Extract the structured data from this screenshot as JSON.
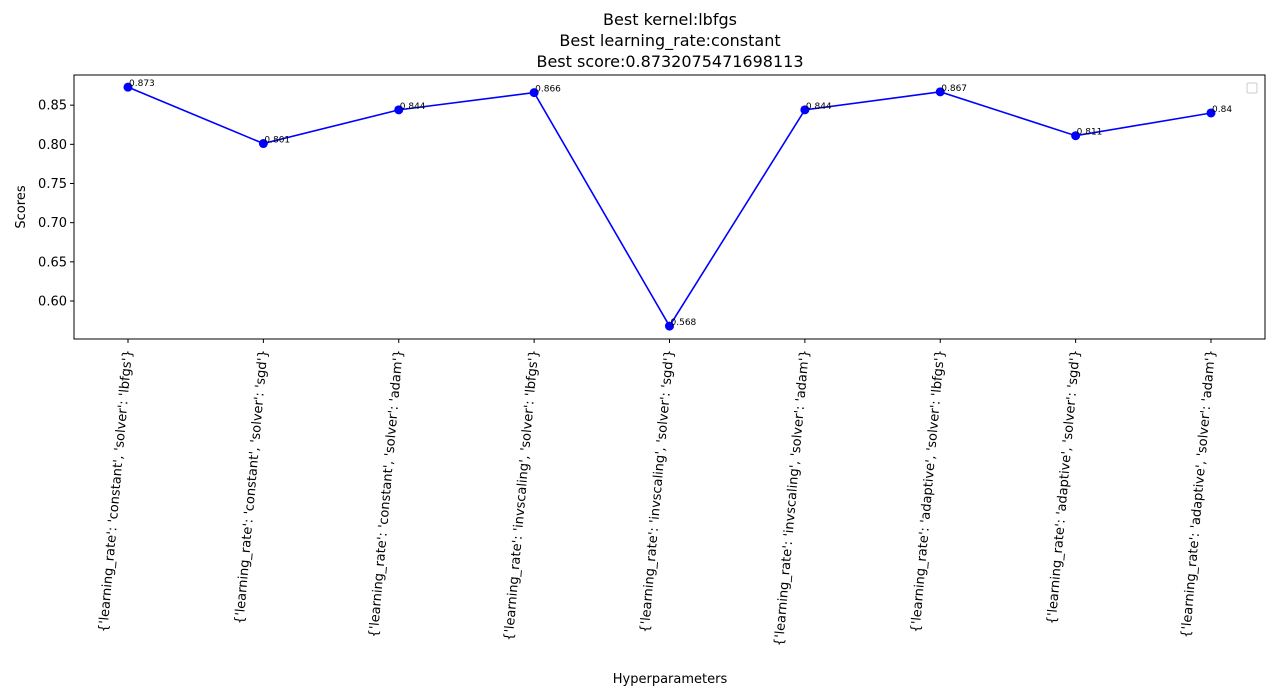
{
  "chart_data": {
    "type": "line",
    "title_lines": [
      "Best kernel:lbfgs",
      "Best learning_rate:constant",
      "Best score:0.8732075471698113"
    ],
    "xlabel": "Hyperparameters",
    "ylabel": "Scores",
    "categories": [
      "{'learning_rate': 'constant', 'solver': 'lbfgs'}",
      "{'learning_rate': 'constant', 'solver': 'sgd'}",
      "{'learning_rate': 'constant', 'solver': 'adam'}",
      "{'learning_rate': 'invscaling', 'solver': 'lbfgs'}",
      "{'learning_rate': 'invscaling', 'solver': 'sgd'}",
      "{'learning_rate': 'invscaling', 'solver': 'adam'}",
      "{'learning_rate': 'adaptive', 'solver': 'lbfgs'}",
      "{'learning_rate': 'adaptive', 'solver': 'sgd'}",
      "{'learning_rate': 'adaptive', 'solver': 'adam'}"
    ],
    "values": [
      0.873,
      0.801,
      0.844,
      0.866,
      0.568,
      0.844,
      0.867,
      0.811,
      0.84
    ],
    "data_labels": [
      "0.873",
      "0.801",
      "0.844",
      "0.866",
      "0.568",
      "0.844",
      "0.867",
      "0.811",
      "0.84"
    ],
    "yticks": [
      0.6,
      0.65,
      0.7,
      0.75,
      0.8,
      0.85
    ],
    "ytick_labels": [
      "0.60",
      "0.65",
      "0.70",
      "0.75",
      "0.80",
      "0.85"
    ],
    "ylim": [
      0.5515,
      0.8885
    ],
    "grid": false,
    "legend": {
      "placement": "top-right",
      "entries": []
    },
    "colors": {
      "line": "#0000ff",
      "marker": "#0000ff",
      "axes": "#000000"
    }
  }
}
